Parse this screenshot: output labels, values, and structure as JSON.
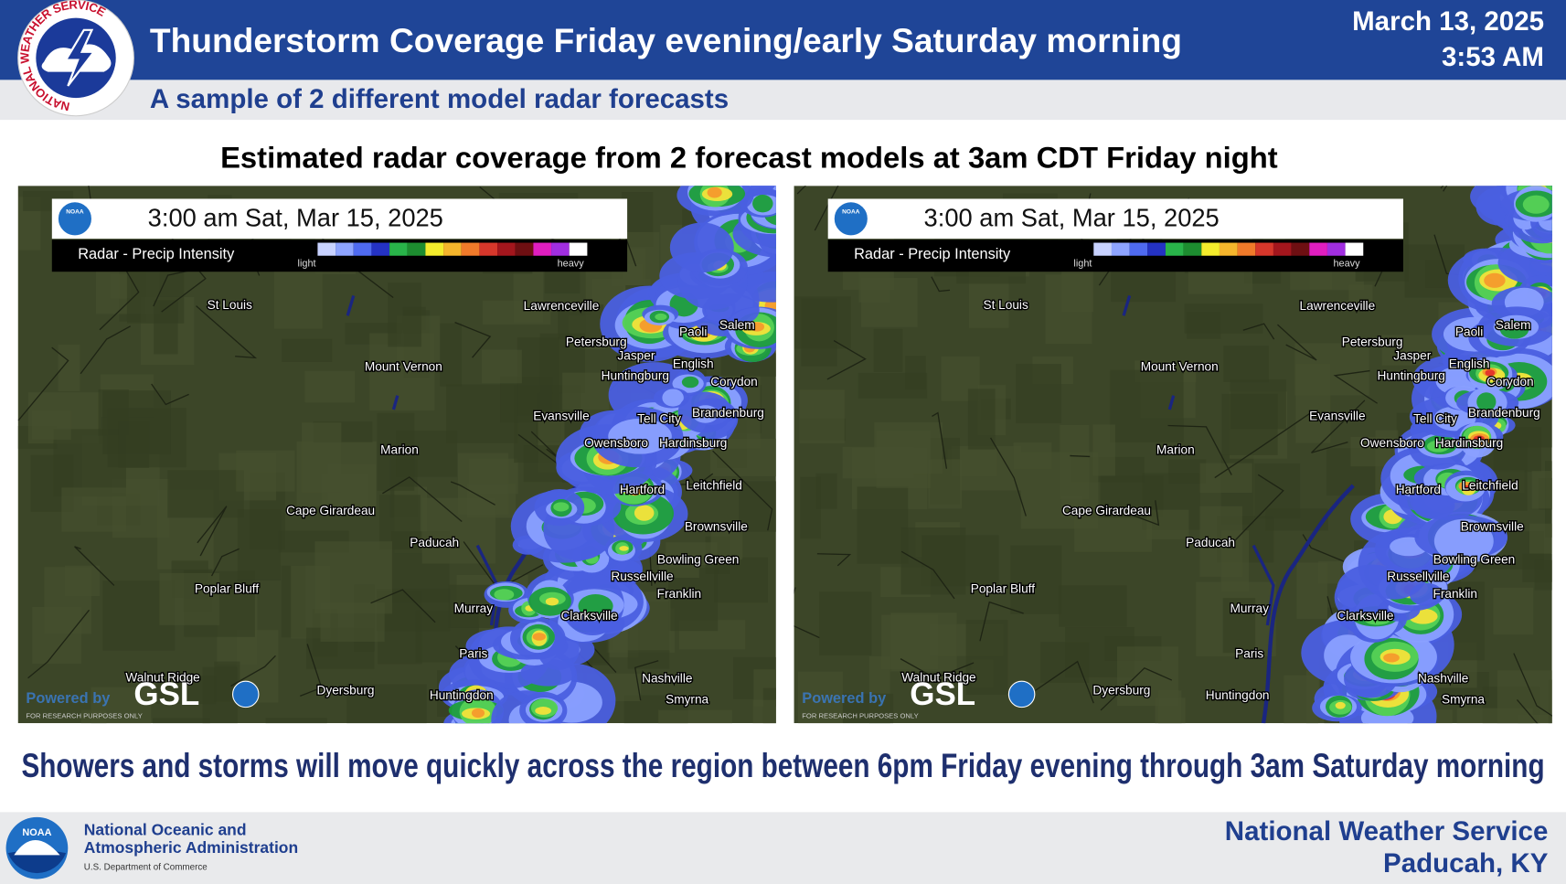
{
  "header": {
    "title": "Thunderstorm Coverage Friday evening/early Saturday morning",
    "date": "March 13, 2025",
    "time": "3:53 AM",
    "subtitle": "A sample of 2 different model radar forecasts",
    "logo_text": "NATIONAL WEATHER SERVICE"
  },
  "heading": "Estimated radar coverage from 2 forecast models at 3am CDT Friday night",
  "maps": [
    {
      "timestamp": "3:00 am Sat, Mar 15, 2025",
      "noaa_label": "NOAA",
      "legend_title": "Radar - Precip Intensity",
      "legend_low": "light",
      "legend_high": "heavy",
      "powered_by": "Powered by",
      "brand": "GSL",
      "disclaimer": "FOR RESEARCH PURPOSES ONLY",
      "cities": [
        "St Louis",
        "Lawrenceville",
        "Paoli",
        "Salem",
        "Petersburg",
        "Jasper",
        "English",
        "Mount Vernon",
        "Huntingburg",
        "Corydon",
        "Evansville",
        "Tell City",
        "Brandenburg",
        "Owensboro",
        "Hardinsburg",
        "Marion",
        "Hartford",
        "Leitchfield",
        "Cape Girardeau",
        "Brownsville",
        "Paducah",
        "Bowling Green",
        "Russellville",
        "Franklin",
        "Poplar Bluff",
        "Murray",
        "Clarksville",
        "Paris",
        "Nashville",
        "Walnut Ridge",
        "Dyersburg",
        "Huntingdon",
        "Smyrna"
      ]
    },
    {
      "timestamp": "3:00 am Sat, Mar 15, 2025",
      "noaa_label": "NOAA",
      "legend_title": "Radar - Precip Intensity",
      "legend_low": "light",
      "legend_high": "heavy",
      "powered_by": "Powered by",
      "brand": "GSL",
      "disclaimer": "FOR RESEARCH PURPOSES ONLY",
      "cities": [
        "St Louis",
        "Lawrenceville",
        "Paoli",
        "Salem",
        "Petersburg",
        "Jasper",
        "English",
        "Mount Vernon",
        "Huntingburg",
        "Corydon",
        "Evansville",
        "Tell City",
        "Brandenburg",
        "Owensboro",
        "Hardinsburg",
        "Marion",
        "Hartford",
        "Leitchfield",
        "Cape Girardeau",
        "Brownsville",
        "Paducah",
        "Bowling Green",
        "Russellville",
        "Franklin",
        "Poplar Bluff",
        "Murray",
        "Clarksville",
        "Paris",
        "Nashville",
        "Walnut Ridge",
        "Dyersburg",
        "Huntingdon",
        "Smyrna"
      ]
    }
  ],
  "summary": "Showers and storms will move quickly across the region between 6pm Friday evening through 3am Saturday morning",
  "footer": {
    "noaa_label": "NOAA",
    "agency_line1": "National Oceanic and",
    "agency_line2": "Atmospheric Administration",
    "department": "U.S. Department of Commerce",
    "office_line1": "National Weather Service",
    "office_line2": "Paducah, KY"
  }
}
